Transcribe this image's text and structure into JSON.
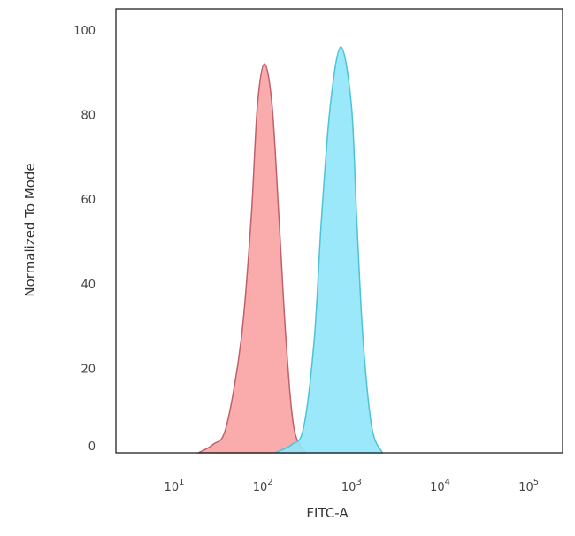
{
  "chart_data": {
    "type": "area",
    "xlabel": "FITC-A",
    "ylabel": "Normalized To Mode",
    "x_scale": "log",
    "xlim": [
      2,
      220000
    ],
    "ylim": [
      0,
      105
    ],
    "x_ticks": [
      {
        "value": 10,
        "base": "10",
        "exp": "1"
      },
      {
        "value": 100,
        "base": "10",
        "exp": "2"
      },
      {
        "value": 1000,
        "base": "10",
        "exp": "3"
      },
      {
        "value": 10000,
        "base": "10",
        "exp": "4"
      },
      {
        "value": 100000,
        "base": "10",
        "exp": "5"
      }
    ],
    "y_ticks": [
      "0",
      "20",
      "40",
      "60",
      "80",
      "100"
    ],
    "grid": false,
    "series": [
      {
        "color": "#f9a3a3",
        "stroke": "#c0606a",
        "x": [
          17,
          25,
          35,
          52,
          67,
          79,
          95,
          116,
          139,
          166,
          204,
          275
        ],
        "y": [
          0,
          2,
          6,
          27,
          55,
          82,
          92,
          82,
          55,
          27,
          6,
          0
        ]
      },
      {
        "color": "#8fe6fa",
        "stroke": "#4cc3d6",
        "x": [
          123,
          195,
          263,
          347,
          417,
          525,
          692,
          912,
          1047,
          1230,
          1549,
          2042
        ],
        "y": [
          0,
          2,
          6,
          27,
          55,
          82,
          96,
          82,
          55,
          27,
          6,
          0
        ]
      }
    ]
  }
}
